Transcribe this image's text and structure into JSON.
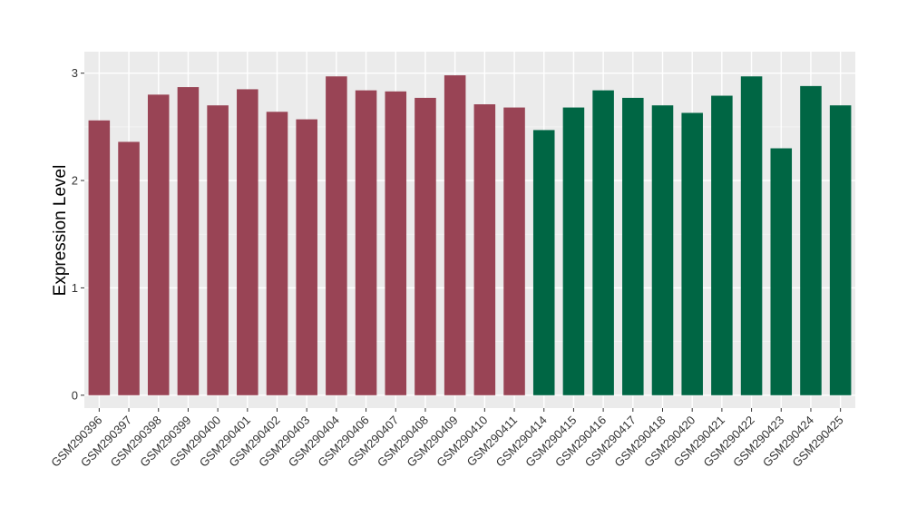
{
  "chart_data": {
    "type": "bar",
    "title": "",
    "xlabel": "",
    "ylabel": "Expression Level",
    "ylim": [
      -0.12,
      3.2
    ],
    "y_ticks": [
      0,
      1,
      2,
      3
    ],
    "grid": true,
    "legend": "none",
    "panel_color": "#ebebeb",
    "categories": [
      "GSM290396",
      "GSM290397",
      "GSM290398",
      "GSM290399",
      "GSM290400",
      "GSM290401",
      "GSM290402",
      "GSM290403",
      "GSM290404",
      "GSM290406",
      "GSM290407",
      "GSM290408",
      "GSM290409",
      "GSM290410",
      "GSM290411",
      "GSM290414",
      "GSM290415",
      "GSM290416",
      "GSM290417",
      "GSM290418",
      "GSM290420",
      "GSM290421",
      "GSM290422",
      "GSM290423",
      "GSM290424",
      "GSM290425"
    ],
    "values": [
      2.56,
      2.36,
      2.8,
      2.87,
      2.7,
      2.85,
      2.64,
      2.57,
      2.97,
      2.84,
      2.83,
      2.77,
      2.98,
      2.71,
      2.68,
      2.47,
      2.68,
      2.84,
      2.77,
      2.7,
      2.63,
      2.79,
      2.97,
      2.3,
      2.88,
      2.7
    ],
    "bar_colors": [
      "#994455",
      "#994455",
      "#994455",
      "#994455",
      "#994455",
      "#994455",
      "#994455",
      "#994455",
      "#994455",
      "#994455",
      "#994455",
      "#994455",
      "#994455",
      "#994455",
      "#994455",
      "#006644",
      "#006644",
      "#006644",
      "#006644",
      "#006644",
      "#006644",
      "#006644",
      "#006644",
      "#006644",
      "#006644",
      "#006644"
    ]
  }
}
